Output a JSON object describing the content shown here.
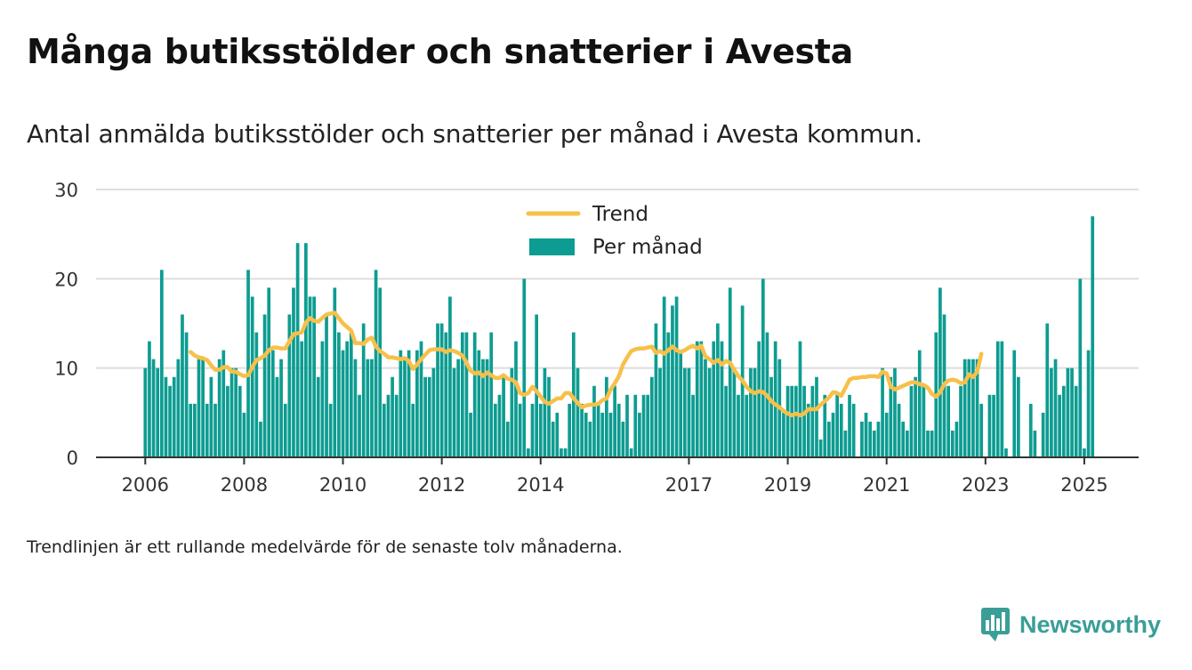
{
  "title": "Många butiksstölder och snatterier i Avesta",
  "subtitle": "Antal anmälda butiksstölder och snatterier per månad i Avesta kommun.",
  "note": "Trendlinjen är ett rullande medelvärde för de senaste tolv månaderna.",
  "brand": {
    "name": "Newsworthy",
    "icon": "bar-chart-speech-bubble-icon",
    "color": "#3a9e96"
  },
  "colors": {
    "bars": "#0d9c91",
    "trend": "#f7c04a",
    "grid": "#dddddd",
    "axis": "#333333"
  },
  "chart_data": {
    "type": "bar",
    "ylim": [
      0,
      30
    ],
    "yticks": [
      0,
      10,
      20,
      30
    ],
    "xticks": [
      "2006",
      "2008",
      "2010",
      "2012",
      "2014",
      "2017",
      "2019",
      "2021",
      "2023",
      "2025"
    ],
    "grid": true,
    "legend": {
      "placement": "top-center",
      "entries": [
        "Trend",
        "Per månad"
      ]
    },
    "series": [
      {
        "name": "Per månad",
        "kind": "bar",
        "start": "2006-01",
        "values": [
          10,
          13,
          11,
          10,
          21,
          9,
          8,
          9,
          11,
          16,
          14,
          6,
          6,
          11,
          11,
          6,
          9,
          6,
          11,
          12,
          8,
          10,
          10,
          8,
          5,
          21,
          18,
          14,
          4,
          16,
          19,
          12,
          9,
          11,
          6,
          16,
          19,
          24,
          13,
          24,
          18,
          18,
          9,
          13,
          16,
          6,
          19,
          14,
          12,
          13,
          14,
          11,
          7,
          15,
          11,
          11,
          21,
          19,
          6,
          7,
          9,
          7,
          12,
          11,
          12,
          6,
          12,
          13,
          9,
          9,
          10,
          15,
          15,
          14,
          18,
          10,
          11,
          14,
          14,
          5,
          14,
          12,
          11,
          11,
          14,
          6,
          7,
          9,
          4,
          10,
          13,
          6,
          20,
          1,
          6,
          16,
          6,
          10,
          9,
          4,
          5,
          1,
          1,
          6,
          14,
          10,
          6,
          5,
          4,
          8,
          6,
          5,
          9,
          5,
          8,
          6,
          4,
          7,
          1,
          7,
          5,
          7,
          7,
          9,
          15,
          10,
          18,
          14,
          17,
          18,
          12,
          10,
          10,
          7,
          13,
          13,
          11,
          10,
          13,
          15,
          13,
          8,
          19,
          10,
          7,
          17,
          7,
          10,
          10,
          13,
          20,
          14,
          9,
          13,
          11,
          5,
          8,
          8,
          8,
          13,
          8,
          6,
          8,
          9,
          2,
          7,
          4,
          5,
          7,
          6,
          3,
          7,
          6,
          0,
          4,
          5,
          4,
          3,
          4,
          10,
          5,
          9,
          10,
          6,
          4,
          3,
          8,
          9,
          12,
          8,
          3,
          3,
          14,
          19,
          16,
          8,
          3,
          4,
          8,
          11,
          11,
          11,
          11,
          6,
          0,
          7,
          7,
          13,
          13,
          1,
          0,
          12,
          9,
          0,
          0,
          6,
          3,
          0,
          5,
          15,
          10,
          11,
          7,
          8,
          10,
          10,
          8,
          20,
          1,
          12,
          27
        ],
        "unit": "antal"
      },
      {
        "name": "Trend",
        "kind": "line",
        "start": "2006-12",
        "values": [
          11.8,
          11.4,
          11.2,
          11.1,
          10.9,
          10.3,
          9.8,
          9.8,
          10.1,
          10.1,
          9.6,
          9.6,
          9.3,
          9.1,
          9.2,
          10.1,
          10.9,
          11.1,
          11.4,
          12.0,
          12.3,
          12.3,
          12.2,
          12.2,
          13.0,
          13.8,
          13.9,
          14.0,
          15.1,
          15.6,
          15.3,
          15.2,
          15.6,
          16.0,
          16.1,
          16.2,
          15.6,
          15.0,
          14.6,
          14.2,
          12.8,
          12.8,
          12.7,
          13.2,
          13.4,
          12.4,
          11.9,
          11.6,
          11.2,
          11.2,
          11.1,
          11.0,
          11.1,
          10.8,
          9.9,
          10.4,
          11.0,
          11.5,
          12.0,
          12.1,
          12.1,
          12.1,
          11.8,
          12.0,
          11.9,
          11.7,
          11.4,
          10.6,
          9.7,
          9.4,
          9.5,
          9.1,
          9.5,
          9.2,
          8.9,
          8.9,
          9.2,
          8.8,
          8.7,
          8.4,
          7.2,
          7.0,
          7.2,
          7.9,
          7.4,
          6.8,
          6.2,
          6.0,
          6.3,
          6.6,
          6.6,
          7.2,
          7.2,
          6.6,
          6.1,
          5.6,
          5.8,
          5.9,
          5.9,
          6.0,
          6.4,
          6.6,
          7.6,
          8.3,
          9.1,
          10.4,
          11.2,
          11.9,
          12.1,
          12.2,
          12.2,
          12.3,
          12.4,
          11.7,
          11.9,
          11.6,
          12.0,
          12.4,
          12.0,
          11.8,
          12.0,
          12.3,
          12.5,
          12.2,
          12.5,
          11.3,
          11.0,
          10.6,
          10.9,
          10.4,
          10.8,
          10.6,
          9.8,
          9.1,
          8.6,
          7.9,
          7.4,
          7.2,
          7.4,
          7.3,
          6.9,
          6.3,
          5.9,
          5.6,
          5.2,
          4.9,
          4.7,
          4.9,
          4.7,
          4.9,
          5.4,
          5.4,
          5.4,
          5.9,
          6.3,
          6.7,
          7.3,
          7.2,
          6.9,
          7.8,
          8.7,
          8.9,
          8.9,
          9.0,
          9.0,
          9.1,
          9.1,
          9.0,
          9.6,
          9.4,
          7.9,
          7.6,
          7.8,
          8.0,
          8.2,
          8.4,
          8.4,
          8.2,
          8.1,
          7.8,
          7.1,
          6.8,
          7.3,
          8.2,
          8.6,
          8.7,
          8.6,
          8.3,
          8.4,
          9.3,
          9.0,
          9.6,
          11.6
        ]
      }
    ]
  }
}
